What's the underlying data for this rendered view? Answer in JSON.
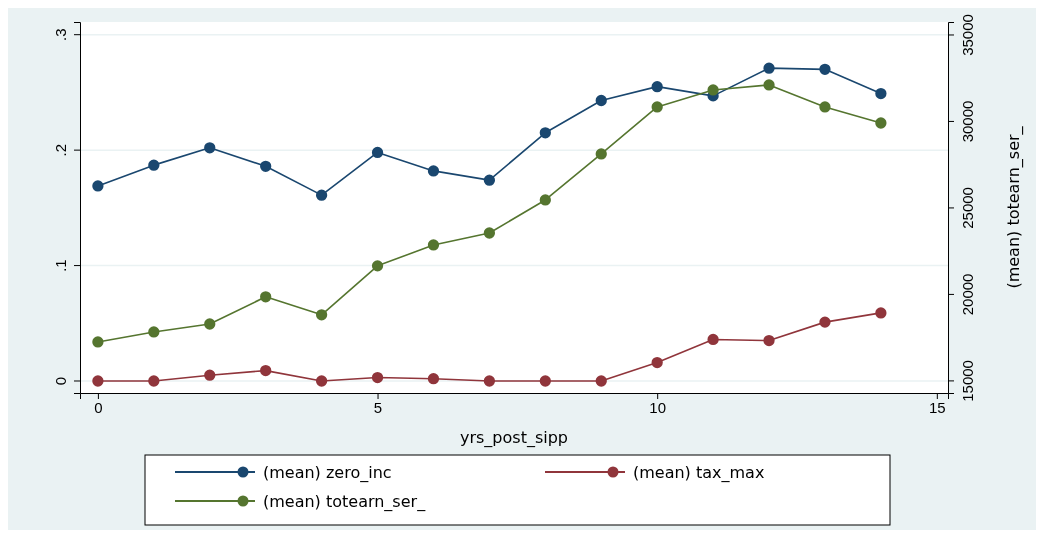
{
  "chart_data": {
    "type": "line",
    "xlabel": "yrs_post_sipp",
    "y2label": "(mean) totearn_ser_",
    "x": [
      0,
      1,
      2,
      3,
      4,
      5,
      6,
      7,
      8,
      9,
      10,
      11,
      12,
      13,
      14
    ],
    "series": [
      {
        "name": "(mean) zero_inc",
        "color": "#1a476f",
        "values": [
          0.169,
          0.187,
          0.202,
          0.186,
          0.161,
          0.198,
          0.182,
          0.174,
          0.215,
          0.243,
          0.255,
          0.247,
          0.271,
          0.27,
          0.249
        ]
      },
      {
        "name": "(mean) tax_max",
        "color": "#90353b",
        "values": [
          0,
          0,
          0.005,
          0.009,
          0,
          0.003,
          0.002,
          0,
          0,
          0,
          0.016,
          0.036,
          0.035,
          0.051,
          0.059
        ]
      },
      {
        "name": "(mean) totearn_ser_",
        "color": "#55752f",
        "axis": "y2",
        "values": [
          17250,
          17830,
          18290,
          19860,
          18820,
          21650,
          22860,
          23550,
          25460,
          28120,
          30840,
          31820,
          32110,
          30840,
          29910
        ]
      }
    ],
    "xlim": [
      -0.32,
      15.2
    ],
    "xticks": [
      0,
      5,
      10,
      15
    ],
    "ylim": [
      -0.0104,
      0.311
    ],
    "yticks": [
      {
        "value": 0,
        "label": "0"
      },
      {
        "value": 0.1,
        "label": ".1"
      },
      {
        "value": 0.2,
        "label": ".2"
      },
      {
        "value": 0.3,
        "label": ".3"
      }
    ],
    "y2lim": [
      14300,
      35750
    ],
    "y2ticks": [
      15000,
      20000,
      25000,
      30000,
      35000
    ],
    "grid": "y",
    "legend": "bottom",
    "marker": "circle",
    "line_style": "solid"
  }
}
